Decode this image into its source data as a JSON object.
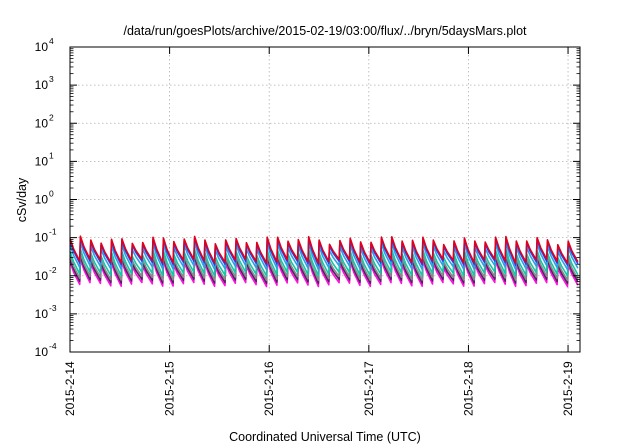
{
  "chart_data": {
    "type": "line",
    "title": "/data/run/goesPlots/archive/2015-02-19/03:00/flux/../bryn/5daysMars.plot",
    "xlabel": "Coordinated Universal Time (UTC)",
    "ylabel": "cSv/day",
    "yscale": "log",
    "ylim": [
      0.0001,
      10000
    ],
    "xlim_days": [
      0,
      5.12
    ],
    "grid": true,
    "legend": "none",
    "ytick_labels": [
      {
        "base": "10",
        "exp": "-4"
      },
      {
        "base": "10",
        "exp": "-3"
      },
      {
        "base": "10",
        "exp": "-2"
      },
      {
        "base": "10",
        "exp": "-1"
      },
      {
        "base": "10",
        "exp": "0"
      },
      {
        "base": "10",
        "exp": "1"
      },
      {
        "base": "10",
        "exp": "2"
      },
      {
        "base": "10",
        "exp": "3"
      },
      {
        "base": "10",
        "exp": "4"
      }
    ],
    "xtick_labels": [
      "2015-2-14",
      "2015-2-15",
      "2015-2-16",
      "2015-2-17",
      "2015-2-18",
      "2015-2-19"
    ],
    "xticks_days": [
      0,
      1,
      2,
      3,
      4,
      5
    ],
    "sawtooth": {
      "count": 49,
      "period_days": 0.1042,
      "peak": 0.065,
      "trough": 0.018
    },
    "series": [
      {
        "color": "#e0001b",
        "scale": 1.35
      },
      {
        "color": "#1f3fff",
        "scale": 1.2
      },
      {
        "color": "#2f9fdf",
        "scale": 0.92
      },
      {
        "color": "#12c8a8",
        "scale": 0.62
      },
      {
        "color": "#8a8a8a",
        "scale": 0.48
      },
      {
        "color": "#502060",
        "scale": 0.4
      },
      {
        "color": "#ff10e0",
        "scale": 0.33
      }
    ]
  }
}
